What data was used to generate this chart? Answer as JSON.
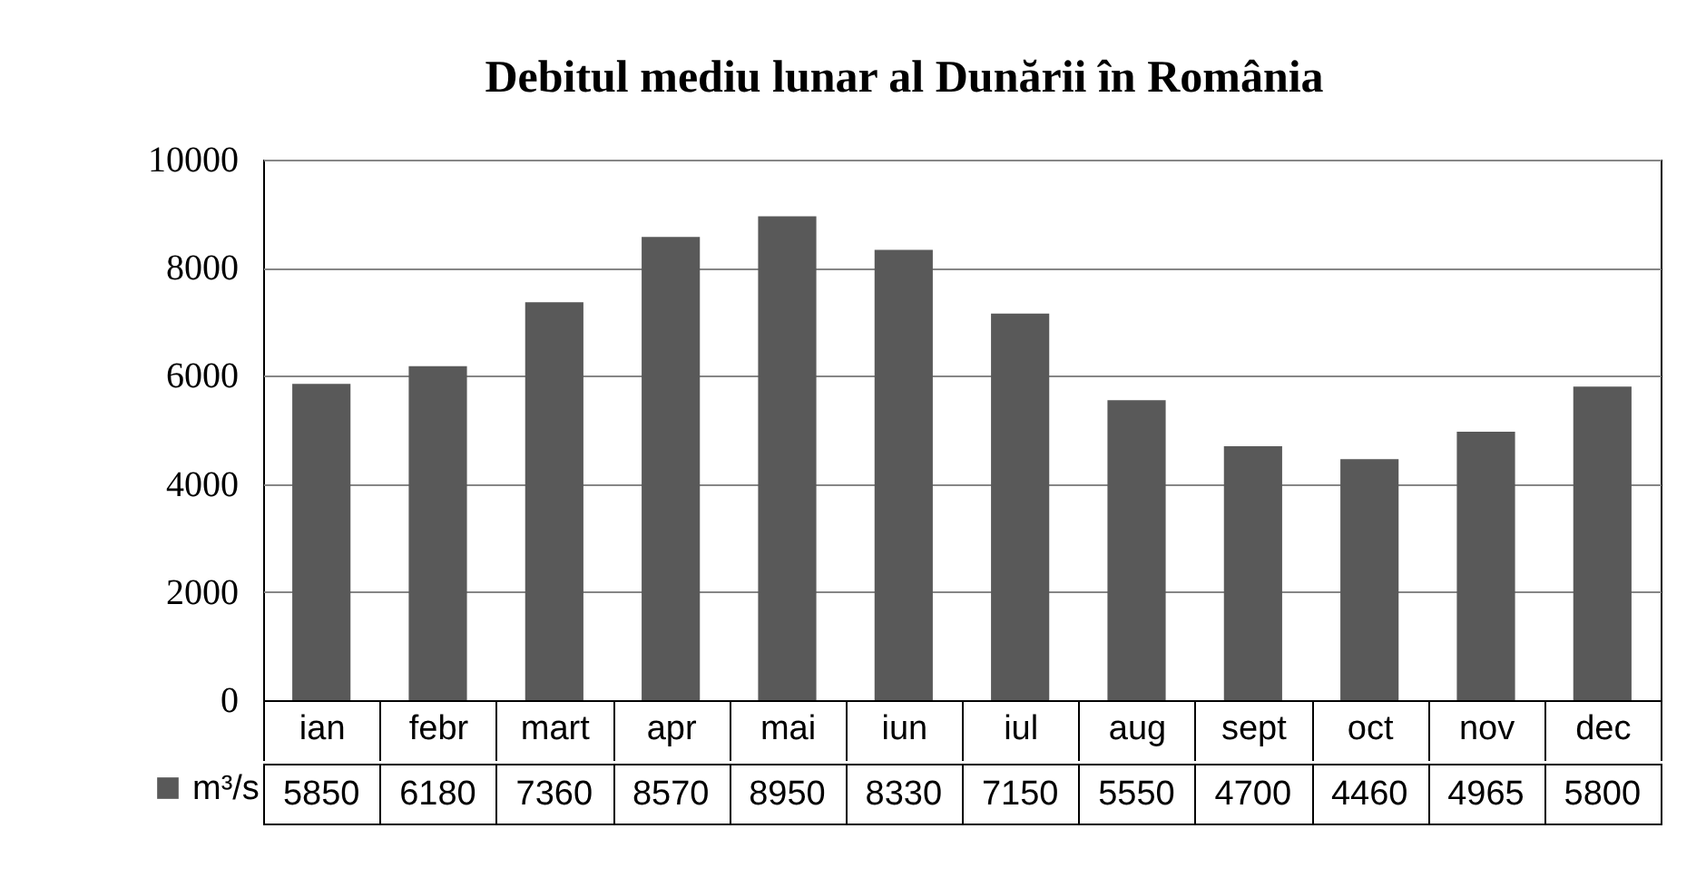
{
  "chart_data": {
    "type": "bar",
    "title": "Debitul mediu lunar al Dunării în România",
    "categories": [
      "ian",
      "febr",
      "mart",
      "apr",
      "mai",
      "iun",
      "iul",
      "aug",
      "sept",
      "oct",
      "nov",
      "dec"
    ],
    "series": [
      {
        "name": "m³/s",
        "color": "#595959",
        "values": [
          5850,
          6180,
          7360,
          8570,
          8950,
          8330,
          7150,
          5550,
          4700,
          4460,
          4965,
          5800
        ]
      }
    ],
    "ylim": [
      0,
      10000
    ],
    "yticks": [
      0,
      2000,
      4000,
      6000,
      8000,
      10000
    ],
    "grid": "y",
    "data_labels": true,
    "legend": "bottom left"
  }
}
